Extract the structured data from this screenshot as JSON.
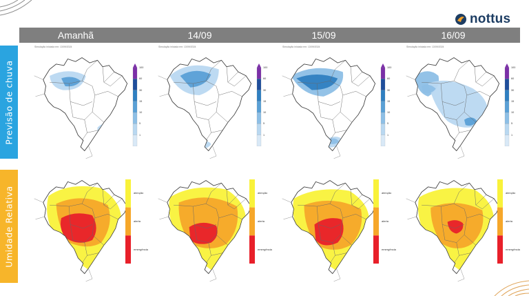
{
  "header": {
    "days": [
      "Amanhã",
      "14/09",
      "15/09",
      "16/09"
    ]
  },
  "rows": {
    "rain_label": "Previsão de chuva",
    "humidity_label": "Umidade Relativa"
  },
  "logo": {
    "text": "nottus",
    "icon": "nottus-drop-logo-icon"
  },
  "rain_caption": "Simulação iniciada em: 13/09/2024",
  "rain_legend_ticks": [
    "100",
    "60",
    "30",
    "15",
    "10",
    "5",
    "1"
  ],
  "humidity_legend_labels": [
    "atenção",
    "alerta",
    "emergência"
  ],
  "colors": {
    "rain_side": "#2aa4e0",
    "humidity_side": "#f7b52a",
    "header_bar": "#7f7f7f",
    "logo_text": "#1d3d63",
    "rain_scale": [
      "#7b2fa8",
      "#1f4e9b",
      "#2f7fc1",
      "#5aa0d6",
      "#8dbfe6",
      "#b9d8f1",
      "#d9e9f7"
    ],
    "humidity_scale": [
      "#f9f23a",
      "#f6a72a",
      "#e8202a"
    ]
  }
}
